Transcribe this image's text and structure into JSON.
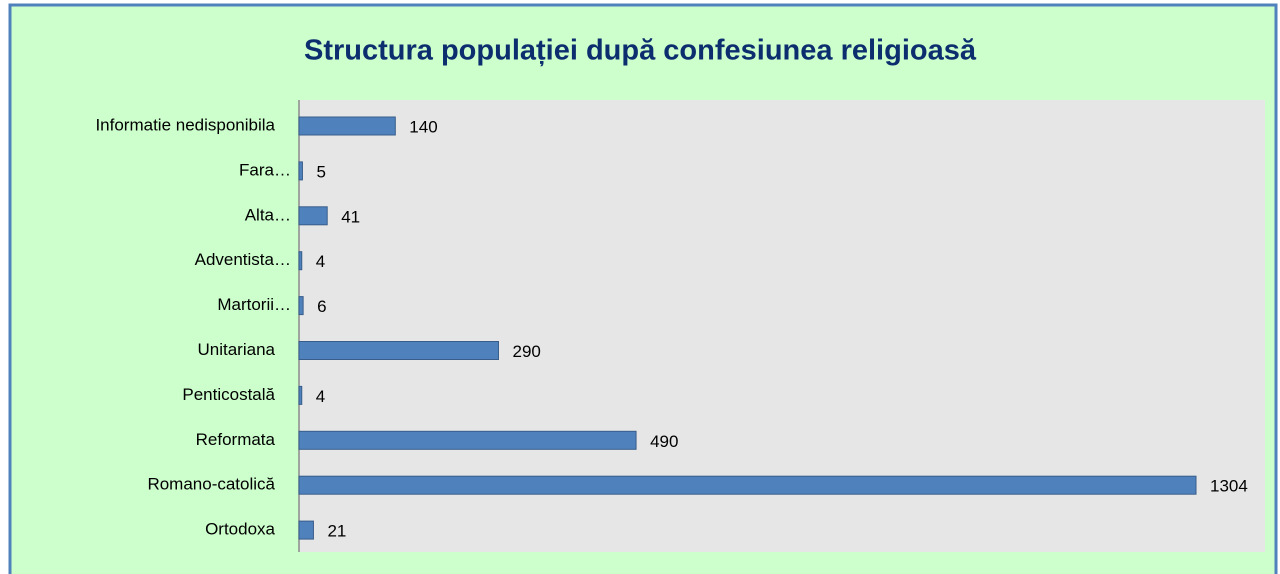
{
  "chart_data": {
    "type": "bar",
    "orientation": "horizontal",
    "title": "Structura populației după confesiunea religioasă",
    "categories": [
      "Informatie nedisponibila",
      "Fara…",
      "Alta…",
      "Adventista…",
      "Martorii…",
      "Unitariana",
      "Penticostală",
      "Reformata",
      "Romano-catolică",
      "Ortodoxa"
    ],
    "values": [
      140,
      5,
      41,
      4,
      6,
      290,
      4,
      490,
      1304,
      21
    ],
    "color": "#4f81bd"
  }
}
